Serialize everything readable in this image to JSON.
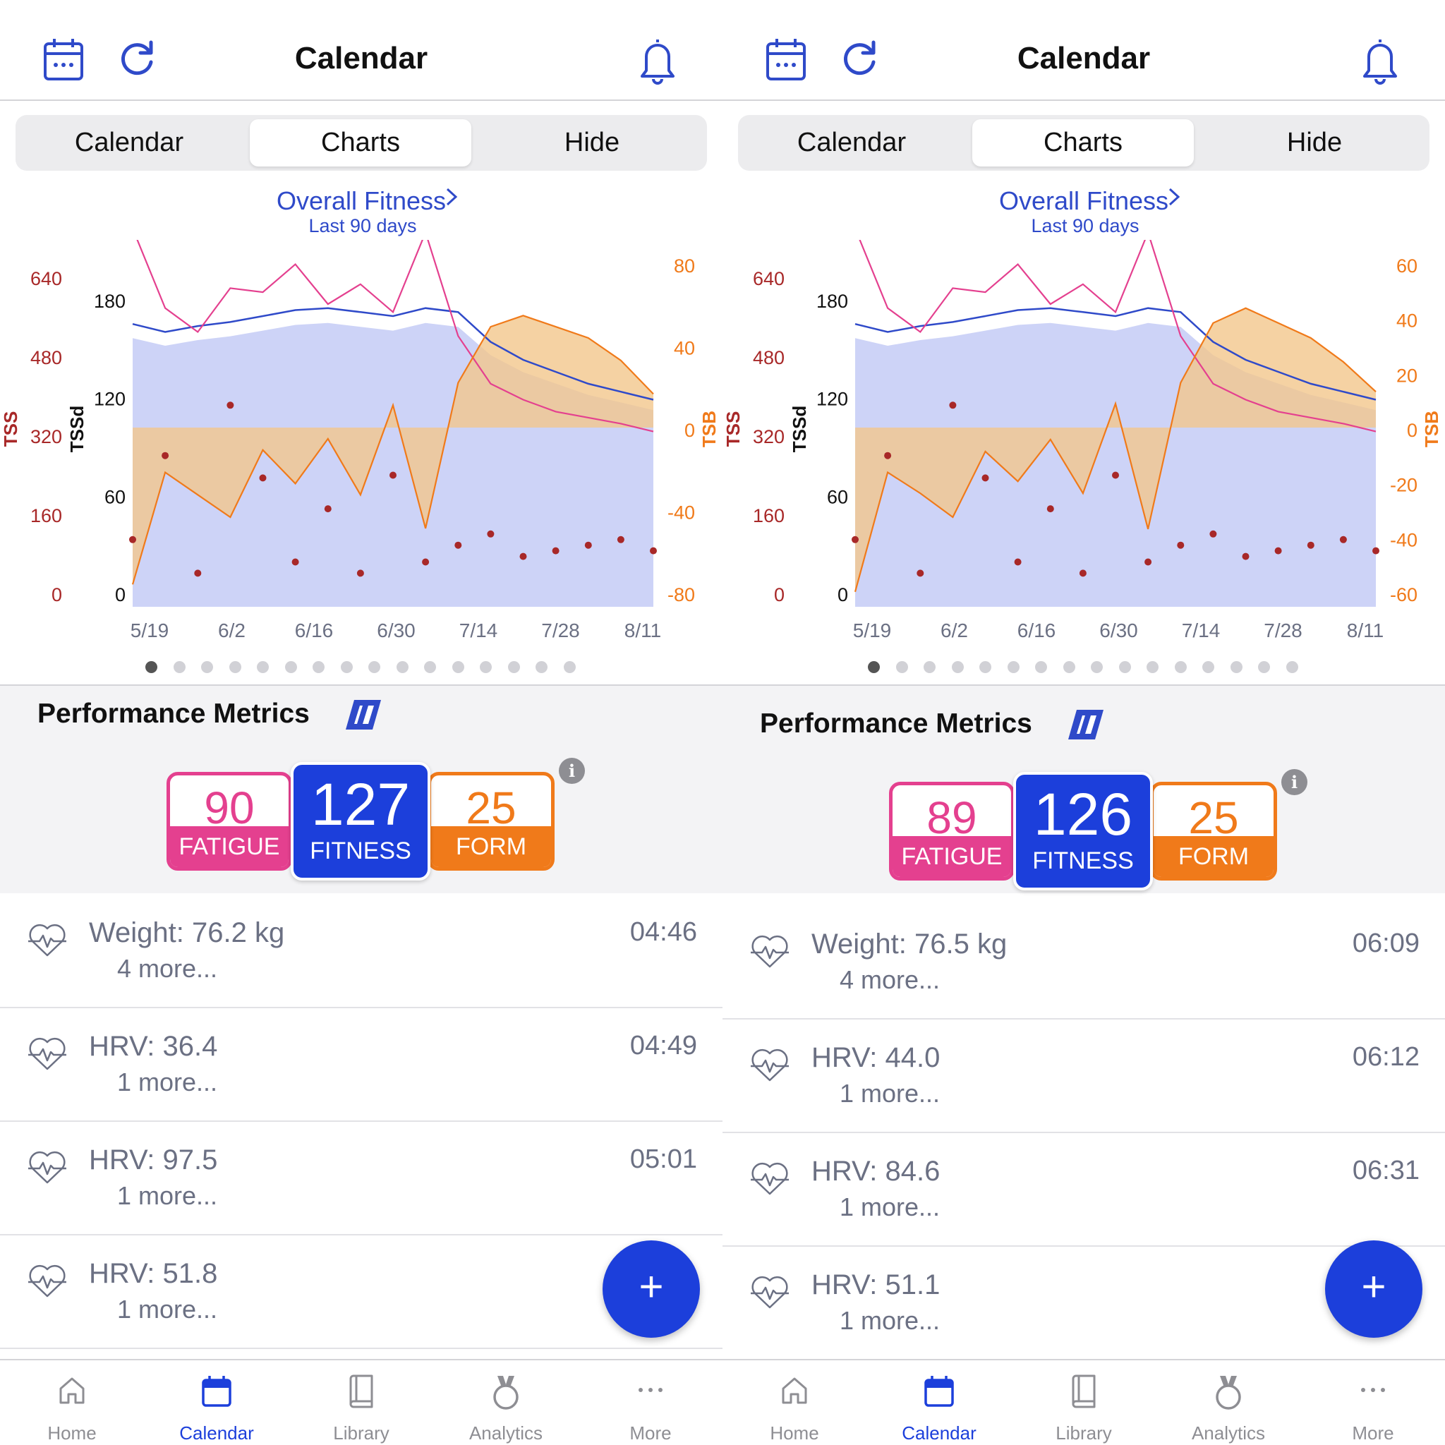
{
  "panels": [
    {
      "header": {
        "title": "Calendar"
      },
      "segments": [
        "Calendar",
        "Charts",
        "Hide"
      ],
      "chart": {
        "title": "Overall Fitness",
        "subtitle": "Last 90 days",
        "y_left_outer": {
          "label": "TSS",
          "ticks": [
            "640",
            "480",
            "320",
            "160",
            "0"
          ]
        },
        "y_left_inner": {
          "label": "TSSd",
          "ticks": [
            "180",
            "120",
            "60",
            "0"
          ]
        },
        "y_right": {
          "label": "TSB",
          "ticks": [
            "80",
            "40",
            "0",
            "-40",
            "-80"
          ]
        },
        "x_ticks": [
          "5/19",
          "6/2",
          "6/16",
          "6/30",
          "7/14",
          "7/28",
          "8/11"
        ]
      },
      "performance": {
        "title": "Performance Metrics",
        "fatigue": {
          "value": "90",
          "label": "FATIGUE"
        },
        "fitness": {
          "value": "127",
          "label": "FITNESS"
        },
        "form": {
          "value": "25",
          "label": "FORM"
        },
        "info": "i"
      },
      "list": [
        {
          "title": "Weight: 76.2 kg",
          "more": "4 more...",
          "time": "04:46"
        },
        {
          "title": "HRV: 36.4",
          "more": "1 more...",
          "time": "04:49"
        },
        {
          "title": "HRV: 97.5",
          "more": "1 more...",
          "time": "05:01"
        },
        {
          "title": "HRV: 51.8",
          "more": "1 more...",
          "time": ""
        }
      ],
      "fab": "+",
      "tabs": [
        "Home",
        "Calendar",
        "Library",
        "Analytics",
        "More"
      ]
    },
    {
      "header": {
        "title": "Calendar"
      },
      "segments": [
        "Calendar",
        "Charts",
        "Hide"
      ],
      "chart": {
        "title": "Overall Fitness",
        "subtitle": "Last 90 days",
        "y_left_outer": {
          "label": "TSS",
          "ticks": [
            "640",
            "480",
            "320",
            "160",
            "0"
          ]
        },
        "y_left_inner": {
          "label": "TSSd",
          "ticks": [
            "180",
            "120",
            "60",
            "0"
          ]
        },
        "y_right": {
          "label": "TSB",
          "ticks": [
            "60",
            "40",
            "20",
            "0",
            "-20",
            "-40",
            "-60"
          ]
        },
        "x_ticks": [
          "5/19",
          "6/2",
          "6/16",
          "6/30",
          "7/14",
          "7/28",
          "8/11"
        ]
      },
      "performance": {
        "title": "Performance Metrics",
        "fatigue": {
          "value": "89",
          "label": "FATIGUE"
        },
        "fitness": {
          "value": "126",
          "label": "FITNESS"
        },
        "form": {
          "value": "25",
          "label": "FORM"
        },
        "info": "i"
      },
      "list": [
        {
          "title": "Weight: 76.5 kg",
          "more": "4 more...",
          "time": "06:09"
        },
        {
          "title": "HRV: 44.0",
          "more": "1 more...",
          "time": "06:12"
        },
        {
          "title": "HRV: 84.6",
          "more": "1 more...",
          "time": "06:31"
        },
        {
          "title": "HRV: 51.1",
          "more": "1 more...",
          "time": ""
        }
      ],
      "fab": "+",
      "tabs": [
        "Home",
        "Calendar",
        "Library",
        "Analytics",
        "More"
      ]
    }
  ],
  "chart_data": [
    {
      "type": "line",
      "title": "Overall Fitness",
      "subtitle": "Last 90 days",
      "x_ticks": [
        "5/19",
        "6/2",
        "6/16",
        "6/30",
        "7/14",
        "7/28",
        "8/11"
      ],
      "axes": {
        "TSS": [
          0,
          640
        ],
        "TSSd": [
          0,
          180
        ],
        "TSB": [
          -80,
          80
        ]
      },
      "series": [
        {
          "name": "Fitness",
          "axis": "TSSd",
          "values": [
            142,
            138,
            141,
            143,
            146,
            149,
            150,
            148,
            146,
            150,
            148,
            133,
            124,
            118,
            112,
            108,
            104
          ]
        },
        {
          "name": "Fatigue",
          "axis": "TSSd",
          "values": [
            190,
            150,
            138,
            160,
            158,
            172,
            152,
            162,
            148,
            188,
            136,
            112,
            104,
            98,
            95,
            92,
            88
          ]
        },
        {
          "name": "Form",
          "axis": "TSB",
          "values": [
            -70,
            -20,
            -30,
            -40,
            -10,
            -25,
            -5,
            -30,
            10,
            -45,
            20,
            45,
            50,
            45,
            40,
            30,
            15
          ]
        },
        {
          "name": "TSS",
          "axis": "TSS",
          "values": [
            120,
            270,
            60,
            360,
            230,
            80,
            175,
            60,
            235,
            80,
            110,
            130,
            90,
            100,
            110,
            120,
            100
          ]
        }
      ]
    },
    {
      "type": "line",
      "title": "Overall Fitness",
      "subtitle": "Last 90 days",
      "x_ticks": [
        "5/19",
        "6/2",
        "6/16",
        "6/30",
        "7/14",
        "7/28",
        "8/11"
      ],
      "axes": {
        "TSS": [
          0,
          640
        ],
        "TSSd": [
          0,
          180
        ],
        "TSB": [
          -60,
          60
        ]
      },
      "series": [
        {
          "name": "Fitness",
          "axis": "TSSd",
          "values": [
            142,
            138,
            141,
            143,
            146,
            149,
            150,
            148,
            146,
            150,
            148,
            133,
            124,
            118,
            112,
            108,
            104
          ]
        },
        {
          "name": "Fatigue",
          "axis": "TSSd",
          "values": [
            190,
            150,
            138,
            160,
            158,
            172,
            152,
            162,
            148,
            188,
            136,
            112,
            104,
            98,
            95,
            92,
            88
          ]
        },
        {
          "name": "Form",
          "axis": "TSB",
          "values": [
            -55,
            -15,
            -22,
            -30,
            -8,
            -18,
            -4,
            -22,
            8,
            -34,
            15,
            35,
            40,
            35,
            30,
            22,
            12
          ]
        },
        {
          "name": "TSS",
          "axis": "TSS",
          "values": [
            120,
            270,
            60,
            360,
            230,
            80,
            175,
            60,
            235,
            80,
            110,
            130,
            90,
            100,
            110,
            120,
            100
          ]
        }
      ]
    }
  ]
}
